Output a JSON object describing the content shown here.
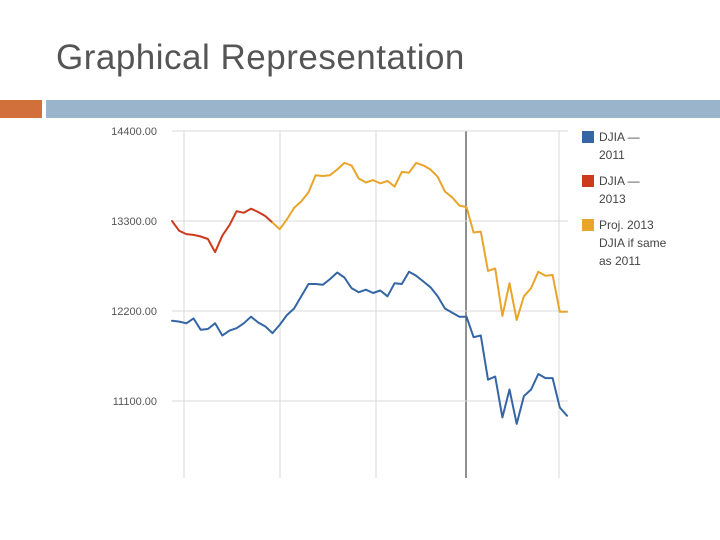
{
  "slide": {
    "title": "Graphical Representation"
  },
  "colors": {
    "accent_orange": "#d2703c",
    "accent_blue": "#9ab4cc"
  },
  "chart_data": {
    "type": "line",
    "title": "",
    "xlabel": "",
    "ylabel": "",
    "ylim": [
      10200,
      14400
    ],
    "yticks": [
      14400,
      13300,
      12200,
      11100
    ],
    "ytick_labels": [
      "14400.00",
      "13300.00",
      "12200.00",
      "11100.00"
    ],
    "grid": true,
    "legend_position": "right",
    "series": [
      {
        "name": "DJIA — 2011",
        "legend_lines": [
          "DJIA —",
          "2011"
        ],
        "color": "#3465a4",
        "x": [
          0,
          1,
          2,
          3,
          4,
          5,
          6,
          7,
          8,
          9,
          10,
          11,
          12,
          13,
          14,
          15,
          16,
          17,
          18,
          19,
          20,
          21,
          22,
          23,
          24,
          25,
          26,
          27,
          28,
          29,
          30,
          31,
          32,
          33,
          34,
          35,
          36,
          37,
          38,
          39,
          40,
          41,
          42,
          43,
          44,
          45,
          46,
          47,
          48,
          49,
          50,
          51,
          52,
          53,
          54,
          55
        ],
        "values": [
          12080,
          12070,
          12050,
          12110,
          11970,
          11980,
          12050,
          11900,
          11960,
          11990,
          12050,
          12130,
          12060,
          12010,
          11930,
          12030,
          12150,
          12230,
          12380,
          12530,
          12530,
          12520,
          12590,
          12670,
          12610,
          12480,
          12430,
          12460,
          12420,
          12450,
          12380,
          12540,
          12530,
          12680,
          12630,
          12560,
          12490,
          12380,
          12230,
          12180,
          12130,
          12130,
          11880,
          11900,
          11360,
          11400,
          10900,
          11240,
          10820,
          11160,
          11240,
          11430,
          11380,
          11380,
          11020,
          10920
        ]
      },
      {
        "name": "DJIA — 2013",
        "legend_lines": [
          "DJIA —",
          "2013"
        ],
        "color": "#cc3b1e",
        "x": [
          0,
          1,
          2,
          3,
          4,
          5,
          6,
          7,
          8,
          9,
          10,
          11,
          12,
          13,
          14
        ],
        "values": [
          13300,
          13180,
          13140,
          13130,
          13110,
          13080,
          12920,
          13120,
          13250,
          13420,
          13400,
          13450,
          13410,
          13360,
          13280
        ]
      },
      {
        "name": "Proj. 2013 DJIA if same as 2011",
        "legend_lines": [
          "Proj. 2013",
          "DJIA if same",
          "as 2011"
        ],
        "color": "#e8a52a",
        "x": [
          14,
          15,
          16,
          17,
          18,
          19,
          20,
          21,
          22,
          23,
          24,
          25,
          26,
          27,
          28,
          29,
          30,
          31,
          32,
          33,
          34,
          35,
          36,
          37,
          38,
          39,
          40,
          41,
          42,
          43,
          44,
          45,
          46,
          47,
          48,
          49,
          50,
          51,
          52,
          53,
          54,
          55
        ],
        "values": [
          13280,
          13200,
          13320,
          13460,
          13540,
          13650,
          13860,
          13850,
          13860,
          13930,
          14010,
          13980,
          13820,
          13770,
          13800,
          13760,
          13790,
          13720,
          13900,
          13890,
          14010,
          13980,
          13930,
          13840,
          13660,
          13590,
          13490,
          13470,
          13160,
          13170,
          12690,
          12720,
          12140,
          12540,
          12090,
          12380,
          12480,
          12680,
          12630,
          12640,
          12190,
          12190
        ]
      }
    ]
  }
}
